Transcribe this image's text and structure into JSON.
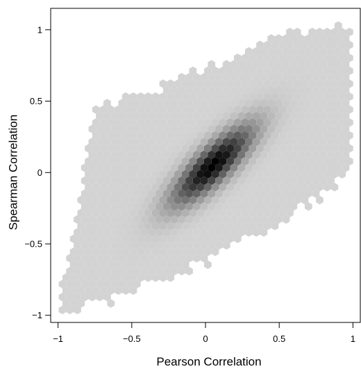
{
  "chart_data": {
    "type": "heatmap",
    "subtype": "hexbin",
    "xlabel": "Pearson Correlation",
    "ylabel": "Spearman Correlation",
    "xlim": [
      -1.05,
      1.05
    ],
    "ylim": [
      -1.05,
      1.15
    ],
    "xticks": [
      -1,
      -0.5,
      0,
      0.5,
      1
    ],
    "xtick_labels": [
      "−1",
      "−0.5",
      "0",
      "0.5",
      "1"
    ],
    "yticks": [
      -1,
      -0.5,
      0,
      0.5,
      1
    ],
    "ytick_labels": [
      "−1",
      "−0.5",
      "0",
      "0.5",
      "1"
    ],
    "grid": false,
    "legend": "none",
    "color_scale": {
      "low": "#d3d3d3",
      "high": "#000000"
    },
    "density_model": {
      "description": "density concentrated along y = x, peak near (0.05, 0.05)",
      "center": [
        0.05,
        0.05
      ],
      "major_axis_direction": [
        1,
        1
      ],
      "peak": 1.0
    },
    "support": {
      "lower_edge": [
        [
          -0.98,
          -1.0
        ],
        [
          -0.6,
          -0.88
        ],
        [
          -0.2,
          -0.72
        ],
        [
          0.2,
          -0.52
        ],
        [
          0.5,
          -0.38
        ],
        [
          1.0,
          0.02
        ]
      ],
      "upper_edge": [
        [
          -0.95,
          -0.78
        ],
        [
          -0.75,
          0.45
        ],
        [
          -0.3,
          0.6
        ],
        [
          0.1,
          0.78
        ],
        [
          0.5,
          0.96
        ],
        [
          1.0,
          1.05
        ]
      ]
    }
  }
}
